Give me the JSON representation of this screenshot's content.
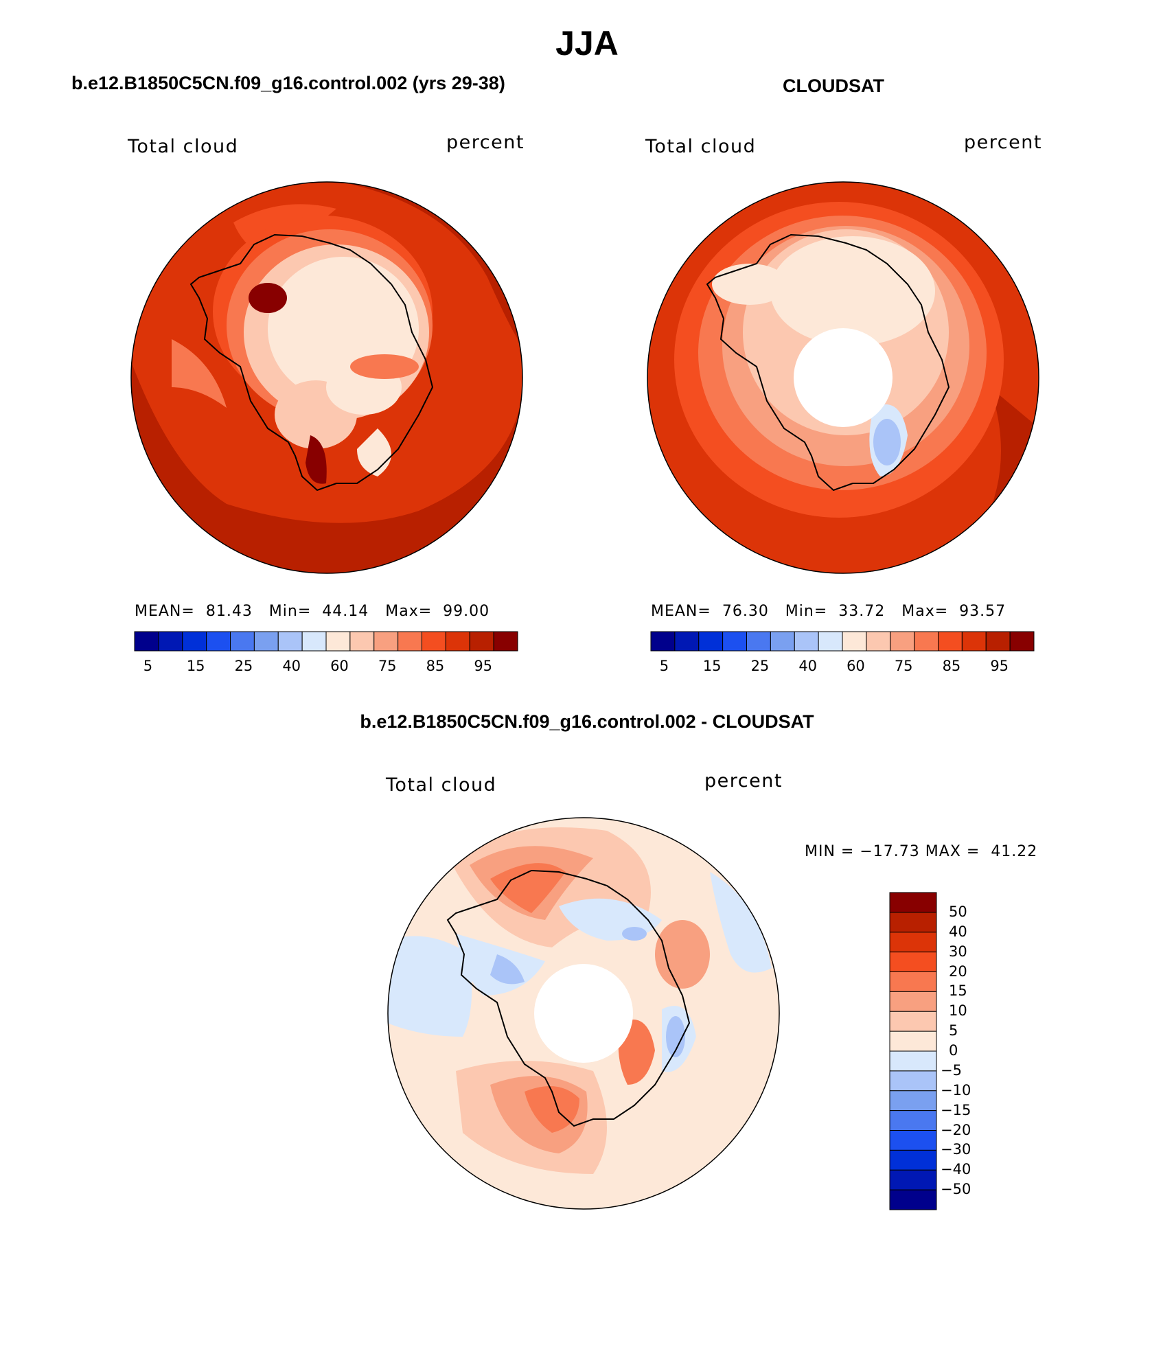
{
  "page": {
    "title": "JJA",
    "diff_title": "b.e12.B1850C5CN.f09_g16.control.002 - CLOUDSAT"
  },
  "panels": [
    {
      "id": "model",
      "title": "b.e12.B1850C5CN.f09_g16.control.002 (yrs 29-38)",
      "variable": "Total cloud",
      "units": "percent",
      "stats": {
        "mean_label": "MEAN=",
        "mean": "81.43",
        "min_label": "Min=",
        "min": "44.14",
        "max_label": "Max=",
        "max": "99.00"
      }
    },
    {
      "id": "obs",
      "title": "CLOUDSAT",
      "variable": "Total cloud",
      "units": "percent",
      "stats": {
        "mean_label": "MEAN=",
        "mean": "76.30",
        "min_label": "Min=",
        "min": "33.72",
        "max_label": "Max=",
        "max": "93.57"
      }
    },
    {
      "id": "diff",
      "variable": "Total cloud",
      "units": "percent",
      "stats": {
        "min_label": "MIN =",
        "min": "−17.73",
        "max_label": "MAX =",
        "max": "41.22"
      }
    }
  ],
  "colorbar_abs": {
    "colors": [
      "#00008c",
      "#0018b4",
      "#0030d8",
      "#1c50f0",
      "#4a78f0",
      "#7aa0f0",
      "#aac4f8",
      "#d8e8fc",
      "#fde8d8",
      "#fcc8b0",
      "#f8a080",
      "#f87850",
      "#f44e20",
      "#dc3408",
      "#b82000",
      "#880000"
    ],
    "labels": [
      "5",
      "15",
      "25",
      "40",
      "60",
      "75",
      "85",
      "95"
    ]
  },
  "colorbar_diff": {
    "colors": [
      "#880000",
      "#b82000",
      "#dc3408",
      "#f44e20",
      "#f87850",
      "#f8a080",
      "#fcc8b0",
      "#fde8d8",
      "#d8e8fc",
      "#aac4f8",
      "#7aa0f0",
      "#4a78f0",
      "#1c50f0",
      "#0030d8",
      "#0018b4",
      "#00008c"
    ],
    "labels": [
      "50",
      "40",
      "30",
      "20",
      "15",
      "10",
      "5",
      "0",
      "−5",
      "−10",
      "−15",
      "−20",
      "−30",
      "−40",
      "−50"
    ]
  }
}
